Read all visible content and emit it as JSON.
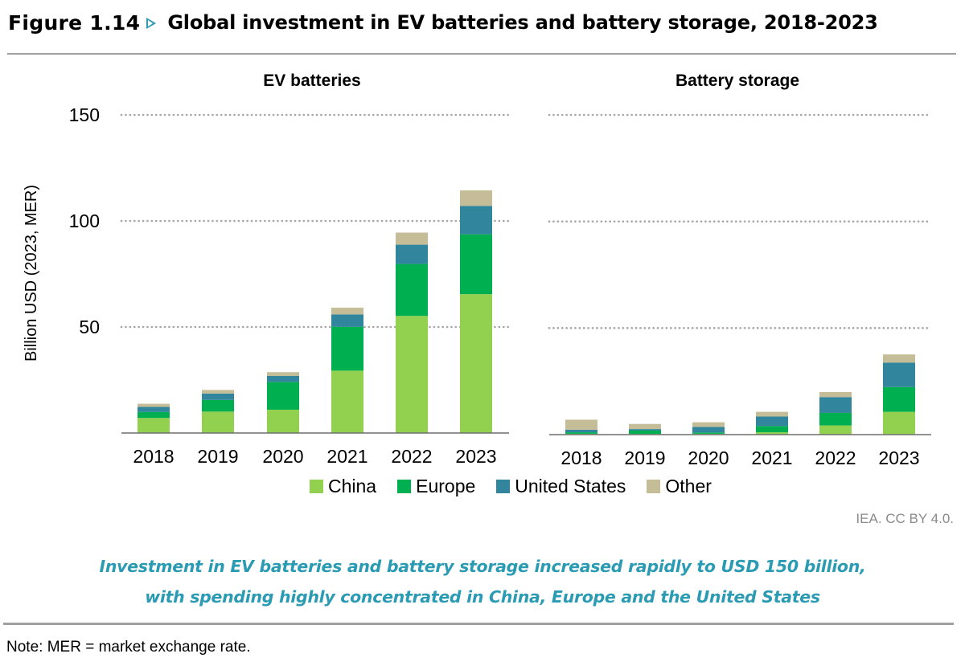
{
  "figure": {
    "label": "Figure 1.14",
    "arrow_icon": "triangle-right-outline",
    "title": "Global investment in EV batteries and battery storage, 2018-2023"
  },
  "colors": {
    "China": "#92d050",
    "Europe": "#00b050",
    "United States": "#31859c",
    "Other": "#c4bd97",
    "accent": "#2a9bb3",
    "gridline": "#a6a6a6",
    "axis": "#6e6e6e"
  },
  "chart_data": [
    {
      "type": "bar",
      "stacked": true,
      "title": "EV batteries",
      "xlabel": "",
      "ylabel": "Billion USD (2023, MER)",
      "ylim": [
        0,
        150
      ],
      "yticks": [
        50,
        100,
        150
      ],
      "ytick_labels": [
        "50",
        "100",
        "150"
      ],
      "grid": true,
      "categories": [
        "2018",
        "2019",
        "2020",
        "2021",
        "2022",
        "2023"
      ],
      "series": [
        {
          "name": "China",
          "values": [
            7.1,
            10.1,
            11.0,
            29.4,
            55.2,
            65.5
          ]
        },
        {
          "name": "Europe",
          "values": [
            2.8,
            5.5,
            13.0,
            20.7,
            24.5,
            28.2
          ]
        },
        {
          "name": "United States",
          "values": [
            2.4,
            3.0,
            2.9,
            5.8,
            9.1,
            13.4
          ]
        },
        {
          "name": "Other",
          "values": [
            1.5,
            1.7,
            1.8,
            3.2,
            5.7,
            7.3
          ]
        }
      ]
    },
    {
      "type": "bar",
      "stacked": true,
      "title": "Battery storage",
      "xlabel": "",
      "ylabel": "Billion USD (2023, MER)",
      "ylim": [
        0,
        150
      ],
      "yticks": [
        50,
        100,
        150
      ],
      "ytick_labels": [
        "50",
        "100",
        "150"
      ],
      "grid": true,
      "categories": [
        "2018",
        "2019",
        "2020",
        "2021",
        "2022",
        "2023"
      ],
      "series": [
        {
          "name": "China",
          "values": [
            0.4,
            0.3,
            0.4,
            1.1,
            4.3,
            10.7
          ]
        },
        {
          "name": "Europe",
          "values": [
            0.7,
            1.6,
            0.6,
            2.9,
            5.9,
            11.6
          ]
        },
        {
          "name": "United States",
          "values": [
            1.2,
            0.7,
            2.6,
            4.5,
            7.4,
            11.5
          ]
        },
        {
          "name": "Other",
          "values": [
            4.7,
            2.4,
            2.2,
            2.2,
            2.4,
            3.8
          ]
        }
      ]
    }
  ],
  "legend": {
    "placement": "bottom-center",
    "items": [
      "China",
      "Europe",
      "United States",
      "Other"
    ]
  },
  "source": "IEA. CC BY 4.0.",
  "caption": {
    "line1": "Investment in EV batteries and battery storage increased rapidly to USD 150 billion,",
    "line2": "with spending highly concentrated in China, Europe and the United States"
  },
  "note": "Note: MER = market exchange rate."
}
